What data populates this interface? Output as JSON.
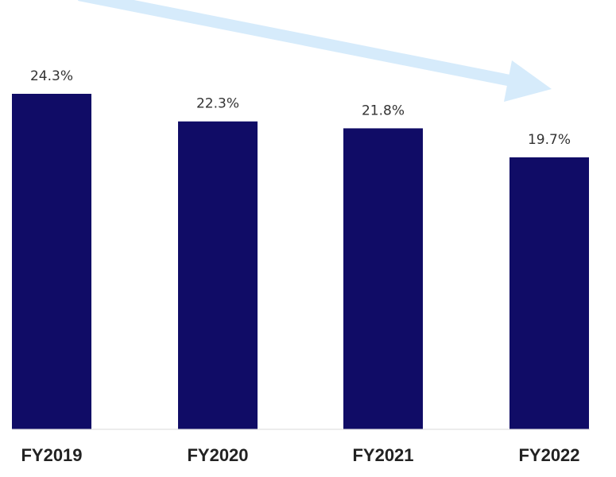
{
  "chart_data": {
    "type": "bar",
    "categories": [
      "FY2019",
      "FY2020",
      "FY2021",
      "FY2022"
    ],
    "values": [
      24.3,
      22.3,
      21.8,
      19.7
    ],
    "value_labels": [
      "24.3%",
      "22.3%",
      "21.8%",
      "19.7%"
    ],
    "unit": "%",
    "ylim": [
      0,
      24.3
    ],
    "grid": false,
    "legend": "none",
    "trend_arrow": "decreasing",
    "colors": {
      "bar": "#100c66",
      "arrow": "#d6ebfb",
      "baseline": "#d9d9d9"
    }
  }
}
